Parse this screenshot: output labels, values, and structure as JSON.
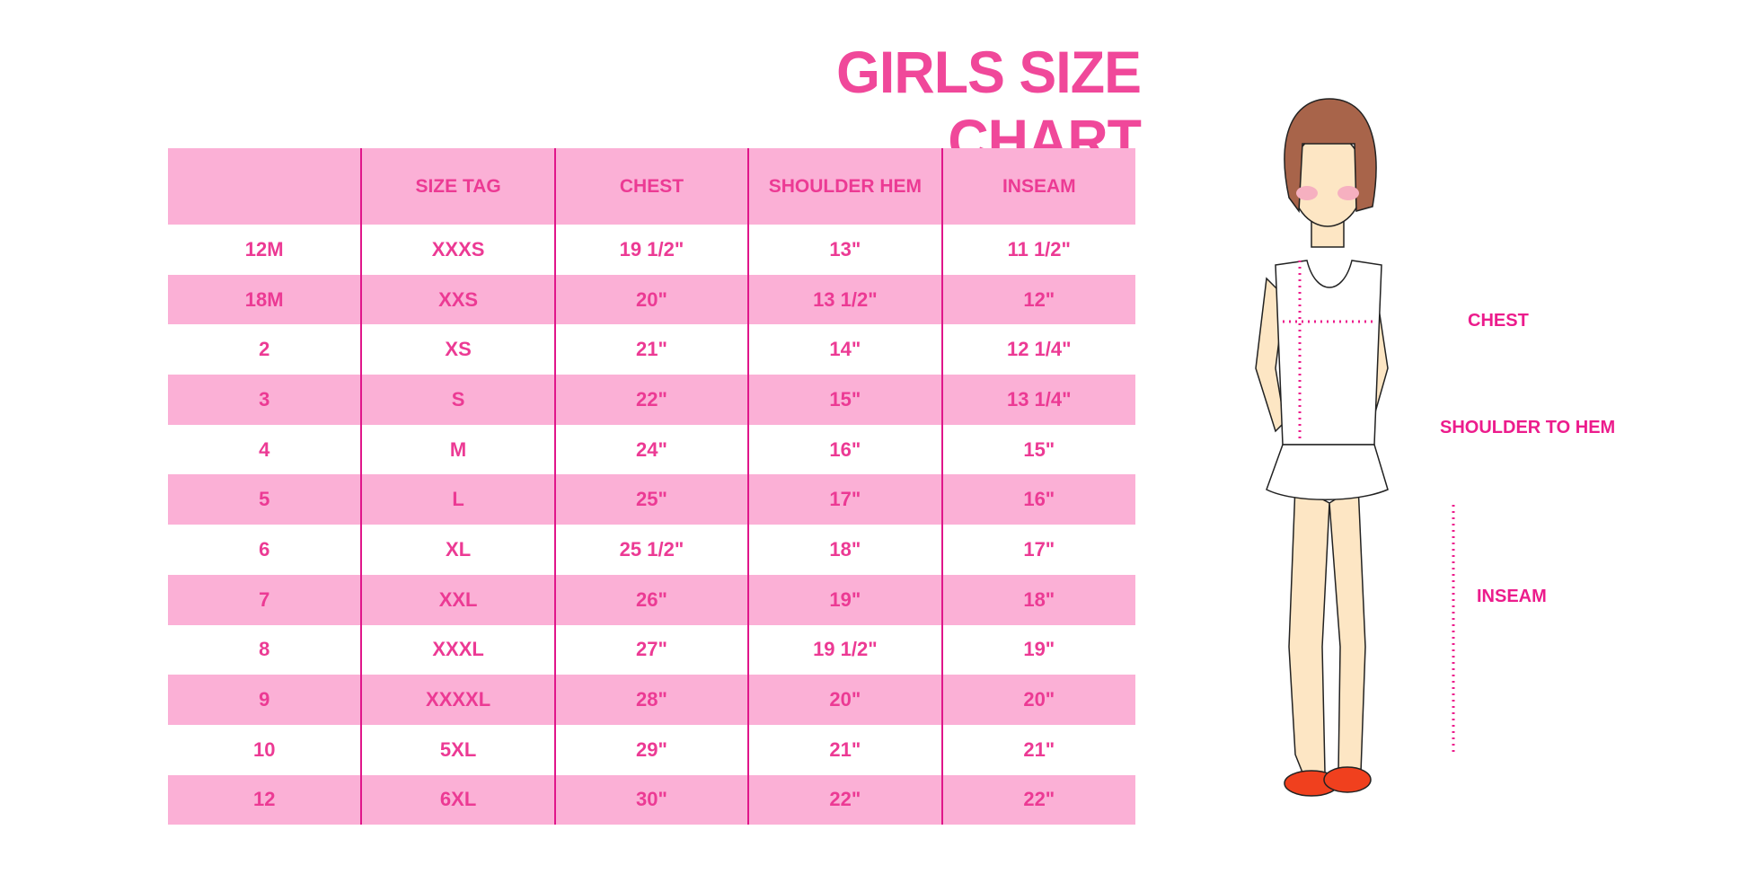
{
  "title": "GIRLS SIZE CHART",
  "table": {
    "headers": [
      "",
      "SIZE TAG",
      "CHEST",
      "SHOULDER HEM",
      "INSEAM"
    ],
    "rows": [
      [
        "12M",
        "XXXS",
        "19 1/2\"",
        "13\"",
        "11 1/2\""
      ],
      [
        "18M",
        "XXS",
        "20\"",
        "13 1/2\"",
        "12\""
      ],
      [
        "2",
        "XS",
        "21\"",
        "14\"",
        "12 1/4\""
      ],
      [
        "3",
        "S",
        "22\"",
        "15\"",
        "13 1/4\""
      ],
      [
        "4",
        "M",
        "24\"",
        "16\"",
        "15\""
      ],
      [
        "5",
        "L",
        "25\"",
        "17\"",
        "16\""
      ],
      [
        "6",
        "XL",
        "25 1/2\"",
        "18\"",
        "17\""
      ],
      [
        "7",
        "XXL",
        "26\"",
        "19\"",
        "18\""
      ],
      [
        "8",
        "XXXL",
        "27\"",
        "19 1/2\"",
        "19\""
      ],
      [
        "9",
        "XXXXL",
        "28\"",
        "20\"",
        "20\""
      ],
      [
        "10",
        "5XL",
        "29\"",
        "21\"",
        "21\""
      ],
      [
        "12",
        "6XL",
        "30\"",
        "22\"",
        "22\""
      ]
    ]
  },
  "figure": {
    "labels": {
      "chest": "CHEST",
      "shoulder_to_hem": "SHOULDER TO HEM",
      "inseam": "INSEAM"
    }
  },
  "colors": {
    "accent": "#ec3a94",
    "row_band": "#fbb0d6",
    "divider": "#e0168a"
  }
}
